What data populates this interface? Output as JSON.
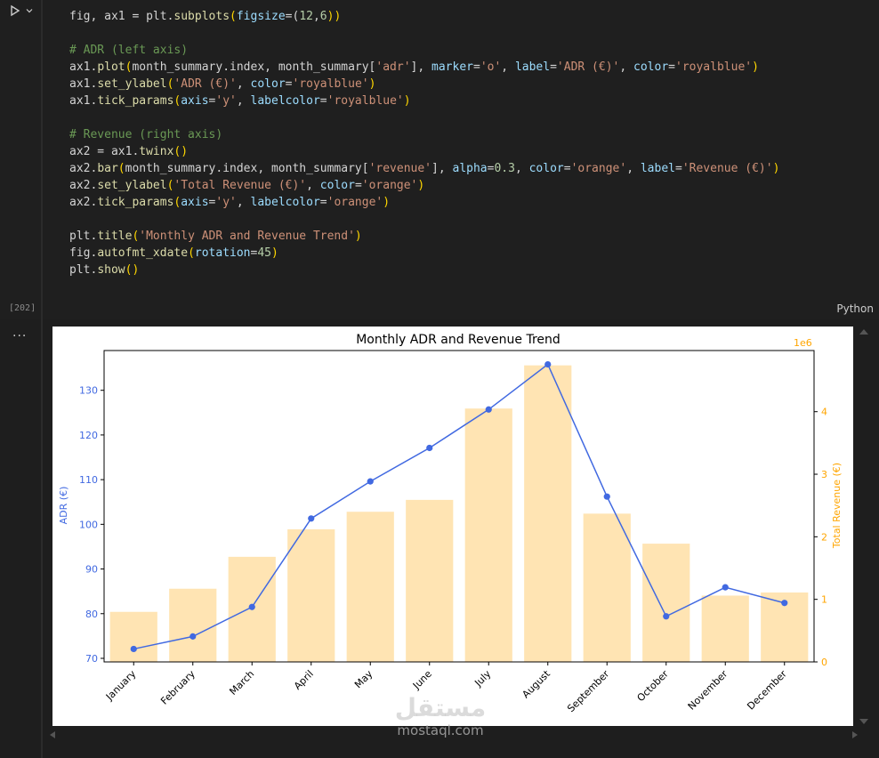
{
  "cell": {
    "execution_count": "[202]",
    "language": "Python",
    "output_more": "...",
    "code_lines": [
      [
        {
          "t": "fig, ax1 = plt.",
          "c": ""
        },
        {
          "t": "subplots",
          "c": "fn"
        },
        {
          "t": "(",
          "c": "pa"
        },
        {
          "t": "figsize",
          "c": "kw"
        },
        {
          "t": "=(",
          "c": ""
        },
        {
          "t": "12",
          "c": "nu"
        },
        {
          "t": ",",
          "c": ""
        },
        {
          "t": "6",
          "c": "nu"
        },
        {
          "t": "))",
          "c": "pa"
        }
      ],
      [],
      [
        {
          "t": "# ADR (left axis)",
          "c": "cm"
        }
      ],
      [
        {
          "t": "ax1.",
          "c": ""
        },
        {
          "t": "plot",
          "c": "fn"
        },
        {
          "t": "(",
          "c": "pa"
        },
        {
          "t": "month_summary.index, month_summary[",
          "c": ""
        },
        {
          "t": "'adr'",
          "c": "st"
        },
        {
          "t": "], ",
          "c": ""
        },
        {
          "t": "marker",
          "c": "kw"
        },
        {
          "t": "=",
          "c": ""
        },
        {
          "t": "'o'",
          "c": "st"
        },
        {
          "t": ", ",
          "c": ""
        },
        {
          "t": "label",
          "c": "kw"
        },
        {
          "t": "=",
          "c": ""
        },
        {
          "t": "'ADR (€)'",
          "c": "st"
        },
        {
          "t": ", ",
          "c": ""
        },
        {
          "t": "color",
          "c": "kw"
        },
        {
          "t": "=",
          "c": ""
        },
        {
          "t": "'royalblue'",
          "c": "st"
        },
        {
          "t": ")",
          "c": "pa"
        }
      ],
      [
        {
          "t": "ax1.",
          "c": ""
        },
        {
          "t": "set_ylabel",
          "c": "fn"
        },
        {
          "t": "(",
          "c": "pa"
        },
        {
          "t": "'ADR (€)'",
          "c": "st"
        },
        {
          "t": ", ",
          "c": ""
        },
        {
          "t": "color",
          "c": "kw"
        },
        {
          "t": "=",
          "c": ""
        },
        {
          "t": "'royalblue'",
          "c": "st"
        },
        {
          "t": ")",
          "c": "pa"
        }
      ],
      [
        {
          "t": "ax1.",
          "c": ""
        },
        {
          "t": "tick_params",
          "c": "fn"
        },
        {
          "t": "(",
          "c": "pa"
        },
        {
          "t": "axis",
          "c": "kw"
        },
        {
          "t": "=",
          "c": ""
        },
        {
          "t": "'y'",
          "c": "st"
        },
        {
          "t": ", ",
          "c": ""
        },
        {
          "t": "labelcolor",
          "c": "kw"
        },
        {
          "t": "=",
          "c": ""
        },
        {
          "t": "'royalblue'",
          "c": "st"
        },
        {
          "t": ")",
          "c": "pa"
        }
      ],
      [],
      [
        {
          "t": "# Revenue (right axis)",
          "c": "cm"
        }
      ],
      [
        {
          "t": "ax2 = ax1.",
          "c": ""
        },
        {
          "t": "twinx",
          "c": "fn"
        },
        {
          "t": "()",
          "c": "pa"
        }
      ],
      [
        {
          "t": "ax2.",
          "c": ""
        },
        {
          "t": "bar",
          "c": "fn"
        },
        {
          "t": "(",
          "c": "pa"
        },
        {
          "t": "month_summary.index, month_summary[",
          "c": ""
        },
        {
          "t": "'revenue'",
          "c": "st"
        },
        {
          "t": "], ",
          "c": ""
        },
        {
          "t": "alpha",
          "c": "kw"
        },
        {
          "t": "=",
          "c": ""
        },
        {
          "t": "0.3",
          "c": "nu"
        },
        {
          "t": ", ",
          "c": ""
        },
        {
          "t": "color",
          "c": "kw"
        },
        {
          "t": "=",
          "c": ""
        },
        {
          "t": "'orange'",
          "c": "st"
        },
        {
          "t": ", ",
          "c": ""
        },
        {
          "t": "label",
          "c": "kw"
        },
        {
          "t": "=",
          "c": ""
        },
        {
          "t": "'Revenue (€)'",
          "c": "st"
        },
        {
          "t": ")",
          "c": "pa"
        }
      ],
      [
        {
          "t": "ax2.",
          "c": ""
        },
        {
          "t": "set_ylabel",
          "c": "fn"
        },
        {
          "t": "(",
          "c": "pa"
        },
        {
          "t": "'Total Revenue (€)'",
          "c": "st"
        },
        {
          "t": ", ",
          "c": ""
        },
        {
          "t": "color",
          "c": "kw"
        },
        {
          "t": "=",
          "c": ""
        },
        {
          "t": "'orange'",
          "c": "st"
        },
        {
          "t": ")",
          "c": "pa"
        }
      ],
      [
        {
          "t": "ax2.",
          "c": ""
        },
        {
          "t": "tick_params",
          "c": "fn"
        },
        {
          "t": "(",
          "c": "pa"
        },
        {
          "t": "axis",
          "c": "kw"
        },
        {
          "t": "=",
          "c": ""
        },
        {
          "t": "'y'",
          "c": "st"
        },
        {
          "t": ", ",
          "c": ""
        },
        {
          "t": "labelcolor",
          "c": "kw"
        },
        {
          "t": "=",
          "c": ""
        },
        {
          "t": "'orange'",
          "c": "st"
        },
        {
          "t": ")",
          "c": "pa"
        }
      ],
      [],
      [
        {
          "t": "plt.",
          "c": ""
        },
        {
          "t": "title",
          "c": "fn"
        },
        {
          "t": "(",
          "c": "pa"
        },
        {
          "t": "'Monthly ADR and Revenue Trend'",
          "c": "st"
        },
        {
          "t": ")",
          "c": "pa"
        }
      ],
      [
        {
          "t": "fig.",
          "c": ""
        },
        {
          "t": "autofmt_xdate",
          "c": "fn"
        },
        {
          "t": "(",
          "c": "pa"
        },
        {
          "t": "rotation",
          "c": "kw"
        },
        {
          "t": "=",
          "c": ""
        },
        {
          "t": "45",
          "c": "nu"
        },
        {
          "t": ")",
          "c": "pa"
        }
      ],
      [
        {
          "t": "plt.",
          "c": ""
        },
        {
          "t": "show",
          "c": "fn"
        },
        {
          "t": "()",
          "c": "pa"
        }
      ]
    ]
  },
  "colors": {
    "royalblue": "#4169e1",
    "orange": "#ffa500",
    "bar_fill": "#ffe4b3"
  },
  "chart_data": {
    "type": "bar",
    "title": "Monthly ADR and Revenue Trend",
    "categories": [
      "January",
      "February",
      "March",
      "April",
      "May",
      "June",
      "July",
      "August",
      "September",
      "October",
      "November",
      "December"
    ],
    "series": [
      {
        "name": "ADR (€)",
        "type": "line",
        "axis": "left",
        "marker": "o",
        "values": [
          72.1,
          74.9,
          81.5,
          101.3,
          109.6,
          117.1,
          125.7,
          135.8,
          106.2,
          79.4,
          85.9,
          82.4
        ]
      },
      {
        "name": "Revenue (€)",
        "type": "bar",
        "axis": "right",
        "values": [
          800000,
          1170000,
          1680000,
          2120000,
          2400000,
          2590000,
          4050000,
          4740000,
          2370000,
          1890000,
          1060000,
          1110000
        ]
      }
    ],
    "ylabel_left": "ADR (€)",
    "ylabel_right": "Total Revenue (€)",
    "ylim_left": [
      69.2,
      138.9
    ],
    "ylim_right": [
      0,
      4977000
    ],
    "yticks_left": [
      70,
      80,
      90,
      100,
      110,
      120,
      130
    ],
    "yticks_right": [
      0,
      1,
      2,
      3,
      4
    ],
    "right_offset_text": "1e6",
    "xtick_rotation": 45,
    "grid": false
  },
  "watermark": {
    "arabic": "مستقل",
    "latin": "mostaql.com"
  }
}
